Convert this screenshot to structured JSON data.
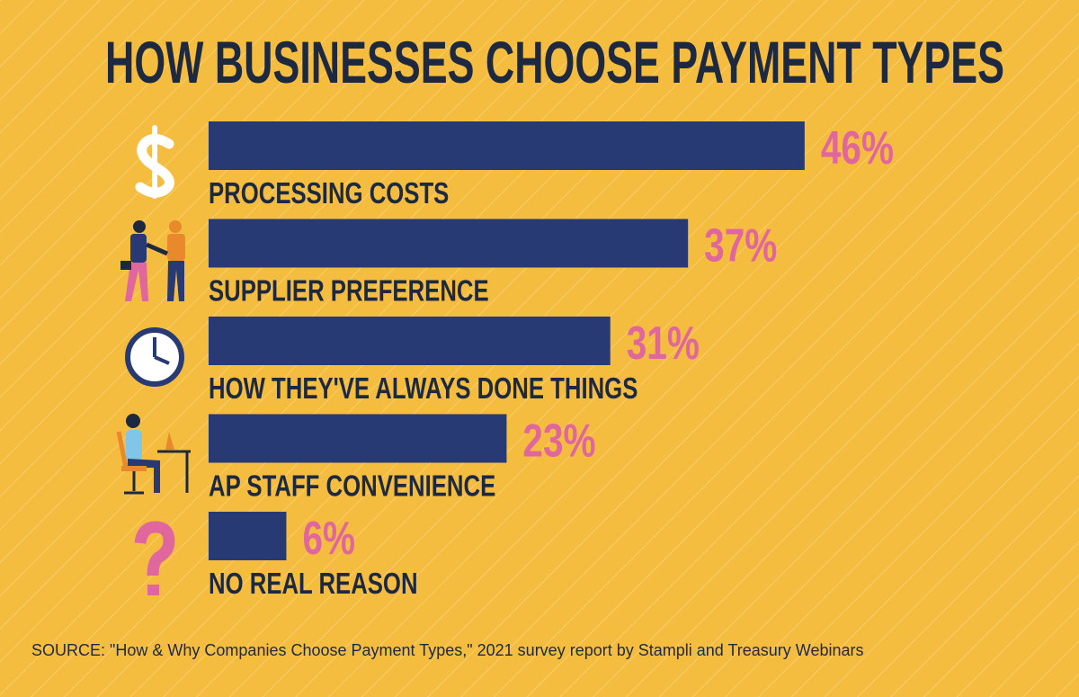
{
  "chart_data": {
    "type": "bar",
    "title": "HOW BUSINESSES CHOOSE PAYMENT TYPES",
    "categories": [
      "PROCESSING COSTS",
      "SUPPLIER PREFERENCE",
      "HOW THEY'VE ALWAYS DONE THINGS",
      "AP STAFF CONVENIENCE",
      "NO REAL REASON"
    ],
    "values": [
      46,
      37,
      31,
      23,
      6
    ],
    "value_labels": [
      "46%",
      "37%",
      "31%",
      "23%",
      "6%"
    ],
    "color": "#283a73",
    "value_label_color": "#e0679d",
    "source": "SOURCE:  \"How & Why Companies Choose Payment Types,\" 2021 survey report by Stampli and Treasury Webinars"
  }
}
